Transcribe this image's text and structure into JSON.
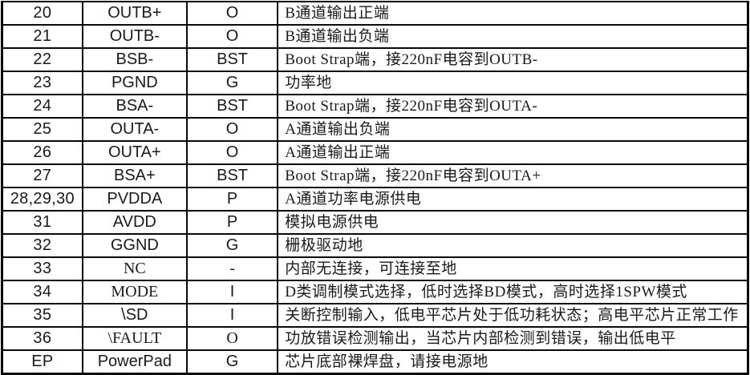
{
  "colors": {
    "border": "#0a0a0a",
    "text": "#1a1a1a",
    "background": "#ffffff"
  },
  "table": {
    "semantic": "pin-description-table",
    "columns": [
      "pin_number",
      "pin_name",
      "pin_type",
      "description"
    ],
    "rows": [
      {
        "pin": "20",
        "name": "OUTB+",
        "type": "O",
        "desc": "B通道输出正端"
      },
      {
        "pin": "21",
        "name": "OUTB-",
        "type": "O",
        "desc": "B通道输出负端"
      },
      {
        "pin": "22",
        "name": "BSB-",
        "type": "BST",
        "desc": "Boot Strap端，接220nF电容到OUTB-"
      },
      {
        "pin": "23",
        "name": "PGND",
        "type": "G",
        "desc": "功率地"
      },
      {
        "pin": "24",
        "name": "BSA-",
        "type": "BST",
        "desc": "Boot Strap端，接220nF电容到OUTA-"
      },
      {
        "pin": "25",
        "name": "OUTA-",
        "type": "O",
        "desc": "A通道输出负端"
      },
      {
        "pin": "26",
        "name": "OUTA+",
        "type": "O",
        "desc": "A通道输出正端"
      },
      {
        "pin": "27",
        "name": "BSA+",
        "type": "BST",
        "desc": "Boot Strap端，接220nF电容到OUTA+"
      },
      {
        "pin": "28,29,30",
        "name": "PVDDA",
        "type": "P",
        "desc": "A通道功率电源供电"
      },
      {
        "pin": "31",
        "name": "AVDD",
        "type": "P",
        "desc": "模拟电源供电"
      },
      {
        "pin": "32",
        "name": "GGND",
        "type": "G",
        "desc": "栅极驱动地"
      },
      {
        "pin": "33",
        "name": "NC",
        "type": "-",
        "desc": "内部无连接，可连接至地"
      },
      {
        "pin": "34",
        "name": "MODE",
        "type": "I",
        "desc": "D类调制模式选择，低时选择BD模式，高时选择1SPW模式"
      },
      {
        "pin": "35",
        "name": "\\SD",
        "type": "I",
        "desc": "关断控制输入，低电平芯片处于低功耗状态；高电平芯片正常工作"
      },
      {
        "pin": "36",
        "name": "\\FAULT",
        "type": "O",
        "desc": "功放错误检测输出，当芯片内部检测到错误，输出低电平"
      },
      {
        "pin": "EP",
        "name": "PowerPad",
        "type": "G",
        "desc": "芯片底部裸焊盘，请接电源地"
      }
    ]
  }
}
